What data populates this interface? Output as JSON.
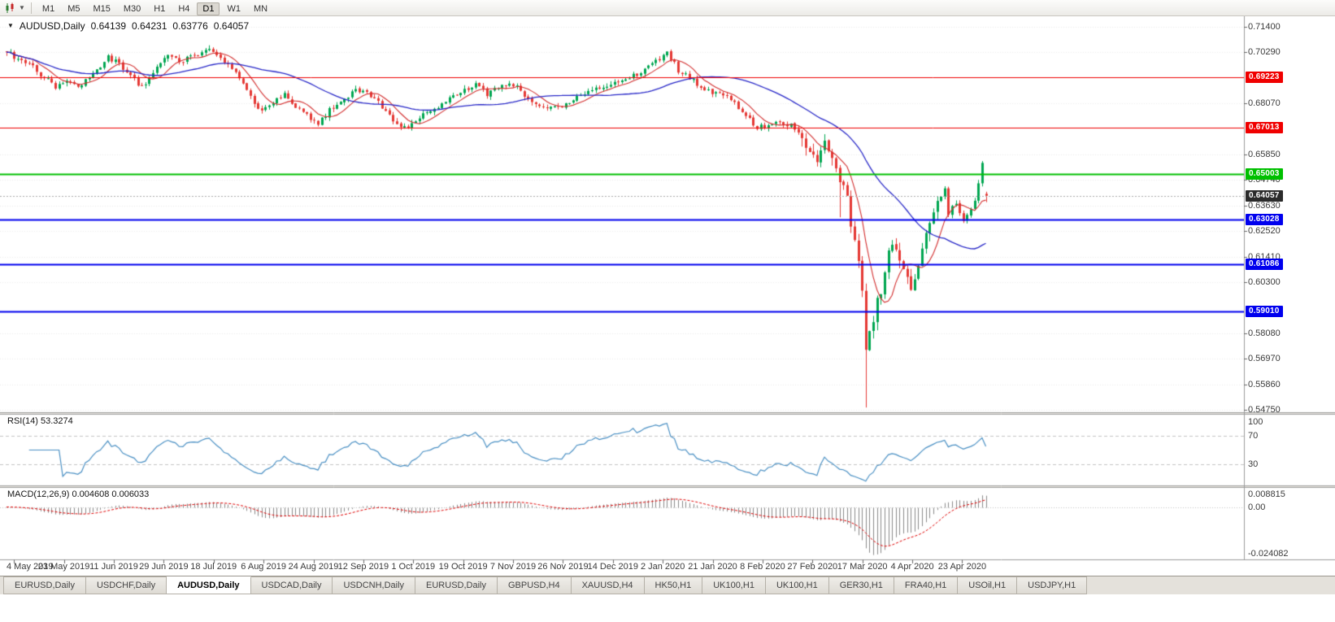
{
  "toolbar": {
    "chart_type_icon": "candlestick-chart-icon",
    "dropdown_icon": "chevron-down-icon",
    "timeframes": [
      "M1",
      "M5",
      "M15",
      "M30",
      "H1",
      "H4",
      "D1",
      "W1",
      "MN"
    ],
    "active_timeframe": "D1"
  },
  "chart_header": {
    "symbol": "AUDUSD,Daily",
    "open": "0.64139",
    "high": "0.64231",
    "low": "0.63776",
    "close": "0.64057"
  },
  "price_axis": {
    "ticks": [
      "0.71400",
      "0.70290",
      "0.68070",
      "0.65850",
      "0.64740",
      "0.63630",
      "0.62520",
      "0.61410",
      "0.60300",
      "0.58080",
      "0.56970",
      "0.55860",
      "0.54750"
    ],
    "tick_values": [
      0.714,
      0.7029,
      0.6807,
      0.6585,
      0.6474,
      0.6363,
      0.6252,
      0.6141,
      0.603,
      0.5808,
      0.5697,
      0.5586,
      0.5475
    ]
  },
  "levels": [
    {
      "label": "0.69223",
      "value": 0.69223,
      "color": "#f00000",
      "width": 1
    },
    {
      "label": "0.67013",
      "value": 0.67013,
      "color": "#f00000",
      "width": 1
    },
    {
      "label": "0.65003",
      "value": 0.65003,
      "color": "#00c000",
      "width": 2
    },
    {
      "label": "0.63028",
      "value": 0.63028,
      "color": "#0000ee",
      "width": 2
    },
    {
      "label": "0.61086",
      "value": 0.61086,
      "color": "#0000ee",
      "width": 2
    },
    {
      "label": "0.59010",
      "value": 0.5901,
      "color": "#0000ee",
      "width": 2
    }
  ],
  "current_price": {
    "label": "0.64057",
    "value": 0.64057,
    "badge_color": "#2b2b2b"
  },
  "rsi": {
    "label": "RSI(14) 53.3274",
    "period": 14,
    "value": 53.3274,
    "axis_labels": [
      "100",
      "70",
      "30"
    ],
    "axis_values": [
      100,
      70,
      30
    ],
    "line_color": "#4a90c4"
  },
  "macd": {
    "label": "MACD(12,26,9) 0.004608 0.006033",
    "fast": 12,
    "slow": 26,
    "signal_period": 9,
    "macd_value": 0.004608,
    "signal_value": 0.006033,
    "axis_labels": [
      "0.008815",
      "0.00",
      "-0.024082"
    ],
    "axis_values": [
      0.008815,
      0,
      -0.024082
    ],
    "histogram_color": "#8a8a8a",
    "signal_color": "#e00000"
  },
  "date_axis": [
    "4 May 2019",
    "23 May 2019",
    "11 Jun 2019",
    "29 Jun 2019",
    "18 Jul 2019",
    "6 Aug 2019",
    "24 Aug 2019",
    "12 Sep 2019",
    "1 Oct 2019",
    "19 Oct 2019",
    "7 Nov 2019",
    "26 Nov 2019",
    "14 Dec 2019",
    "2 Jan 2020",
    "21 Jan 2020",
    "8 Feb 2020",
    "27 Feb 2020",
    "17 Mar 2020",
    "4 Apr 2020",
    "23 Apr 2020"
  ],
  "tabs": {
    "active_index": 2,
    "items": [
      "EURUSD,Daily",
      "USDCHF,Daily",
      "AUDUSD,Daily",
      "USDCAD,Daily",
      "USDCNH,Daily",
      "EURUSD,Daily",
      "GBPUSD,H4",
      "XAUUSD,H4",
      "HK50,H1",
      "UK100,H1",
      "UK100,H1",
      "GER30,H1",
      "FRA40,H1",
      "USOil,H1",
      "USDJPY,H1"
    ]
  },
  "chart_data": {
    "type": "candlestick",
    "symbol": "AUDUSD",
    "timeframe": "Daily",
    "bars": 262,
    "visible_price_range": [
      0.54644,
      0.71859
    ],
    "up_color": "#00a651",
    "down_color": "#e53935",
    "ma_fast": {
      "period": 8,
      "color": "#d32f2f"
    },
    "ma_slow": {
      "period": 34,
      "color": "#2828c8"
    },
    "anchors": [
      [
        0,
        0.7035
      ],
      [
        3,
        0.7
      ],
      [
        6,
        0.6978
      ],
      [
        9,
        0.6932
      ],
      [
        13,
        0.6878
      ],
      [
        16,
        0.6902
      ],
      [
        19,
        0.6872
      ],
      [
        23,
        0.6932
      ],
      [
        27,
        0.7008
      ],
      [
        30,
        0.6978
      ],
      [
        33,
        0.693
      ],
      [
        36,
        0.6875
      ],
      [
        39,
        0.6948
      ],
      [
        43,
        0.7022
      ],
      [
        46,
        0.6988
      ],
      [
        50,
        0.7018
      ],
      [
        53,
        0.7042
      ],
      [
        56,
        0.7022
      ],
      [
        59,
        0.6978
      ],
      [
        62,
        0.692
      ],
      [
        65,
        0.6832
      ],
      [
        68,
        0.6772
      ],
      [
        71,
        0.6808
      ],
      [
        74,
        0.6852
      ],
      [
        77,
        0.6792
      ],
      [
        80,
        0.6758
      ],
      [
        83,
        0.6722
      ],
      [
        86,
        0.6778
      ],
      [
        89,
        0.6812
      ],
      [
        93,
        0.6868
      ],
      [
        96,
        0.6852
      ],
      [
        99,
        0.6812
      ],
      [
        102,
        0.6752
      ],
      [
        105,
        0.6708
      ],
      [
        107,
        0.67
      ],
      [
        110,
        0.6748
      ],
      [
        113,
        0.6772
      ],
      [
        116,
        0.6802
      ],
      [
        119,
        0.6842
      ],
      [
        122,
        0.6865
      ],
      [
        125,
        0.6888
      ],
      [
        128,
        0.6848
      ],
      [
        131,
        0.6872
      ],
      [
        134,
        0.6902
      ],
      [
        137,
        0.6862
      ],
      [
        140,
        0.6812
      ],
      [
        143,
        0.6792
      ],
      [
        147,
        0.6784
      ],
      [
        151,
        0.6822
      ],
      [
        155,
        0.6852
      ],
      [
        158,
        0.6874
      ],
      [
        161,
        0.6888
      ],
      [
        164,
        0.6908
      ],
      [
        167,
        0.6928
      ],
      [
        170,
        0.6952
      ],
      [
        173,
        0.6992
      ],
      [
        176,
        0.7028
      ],
      [
        179,
        0.6952
      ],
      [
        182,
        0.6918
      ],
      [
        185,
        0.6882
      ],
      [
        188,
        0.6854
      ],
      [
        191,
        0.685
      ],
      [
        194,
        0.6808
      ],
      [
        197,
        0.6758
      ],
      [
        200,
        0.6702
      ],
      [
        203,
        0.6712
      ],
      [
        206,
        0.6724
      ],
      [
        209,
        0.6712
      ],
      [
        212,
        0.6664
      ],
      [
        214,
        0.6602
      ],
      [
        216,
        0.6548
      ],
      [
        218,
        0.6622
      ],
      [
        220,
        0.6588
      ],
      [
        222,
        0.6442
      ],
      [
        223,
        0.6458
      ],
      [
        224,
        0.6412
      ],
      [
        225,
        0.6292
      ],
      [
        226,
        0.6222
      ],
      [
        227,
        0.6122
      ],
      [
        228,
        0.5982
      ],
      [
        229,
        0.5748
      ],
      [
        230,
        0.5802
      ],
      [
        231,
        0.5832
      ],
      [
        232,
        0.5968
      ],
      [
        233,
        0.6002
      ],
      [
        234,
        0.6068
      ],
      [
        235,
        0.6172
      ],
      [
        236,
        0.6198
      ],
      [
        237,
        0.6152
      ],
      [
        238,
        0.6132
      ],
      [
        239,
        0.6072
      ],
      [
        240,
        0.6062
      ],
      [
        241,
        0.5998
      ],
      [
        242,
        0.6042
      ],
      [
        243,
        0.6088
      ],
      [
        244,
        0.6168
      ],
      [
        245,
        0.6232
      ],
      [
        246,
        0.6292
      ],
      [
        247,
        0.6348
      ],
      [
        248,
        0.6378
      ],
      [
        249,
        0.6392
      ],
      [
        250,
        0.6442
      ],
      [
        251,
        0.6322
      ],
      [
        252,
        0.6358
      ],
      [
        253,
        0.6368
      ],
      [
        254,
        0.6338
      ],
      [
        255,
        0.6292
      ],
      [
        256,
        0.6322
      ],
      [
        257,
        0.6342
      ],
      [
        258,
        0.6392
      ],
      [
        259,
        0.6468
      ],
      [
        260,
        0.6552
      ],
      [
        261,
        0.64057
      ]
    ],
    "spikes": [
      {
        "i": 222,
        "low": 0.6312
      },
      {
        "i": 229,
        "low": 0.5485
      },
      {
        "i": 53,
        "high": 0.7048
      },
      {
        "i": 176,
        "high": 0.7032
      }
    ],
    "last_bar": {
      "open": 0.64139,
      "high": 0.64231,
      "low": 0.63776,
      "close": 0.64057
    }
  }
}
